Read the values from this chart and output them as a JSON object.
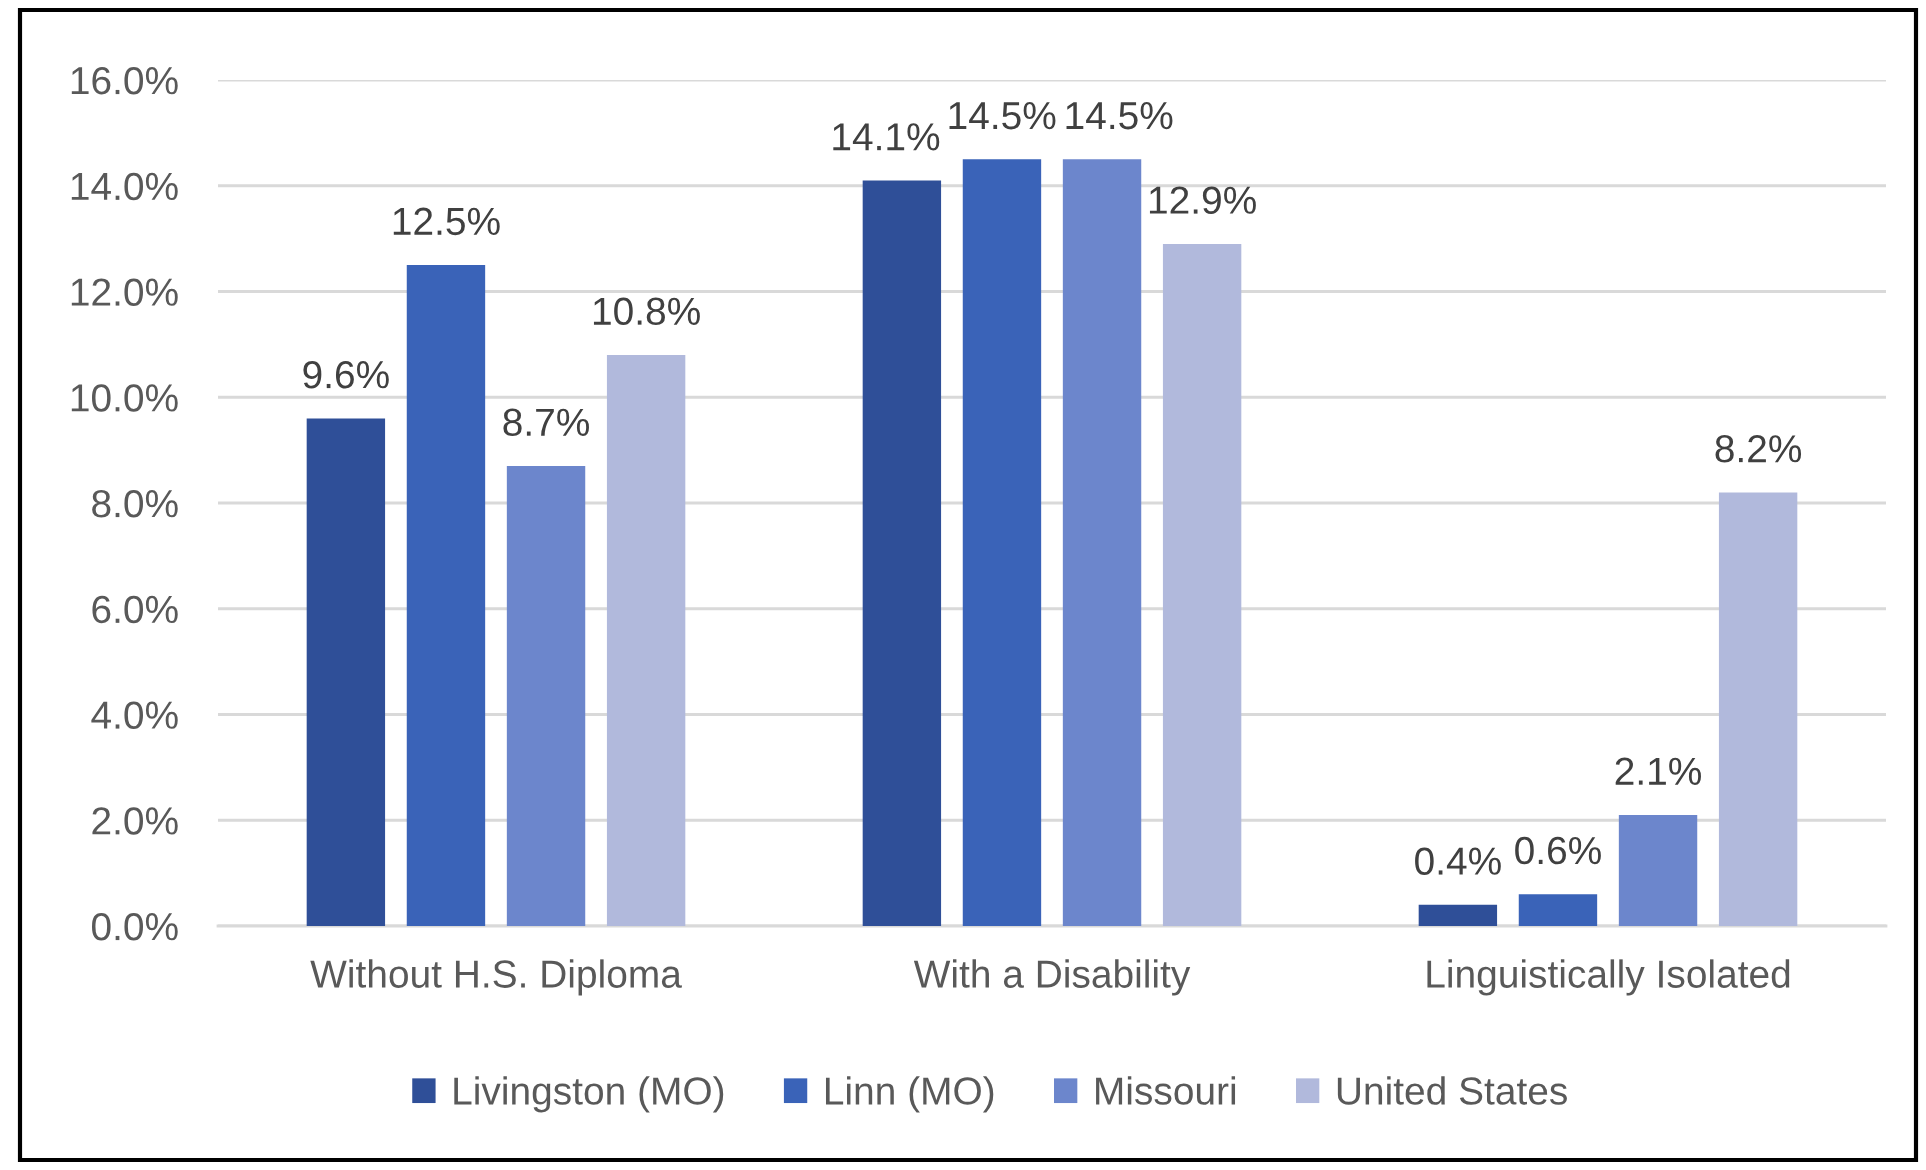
{
  "chart_data": {
    "type": "bar",
    "categories": [
      "Without H.S. Diploma",
      "With a Disability",
      "Linguistically Isolated"
    ],
    "series": [
      {
        "name": "Livingston (MO)",
        "color": "#2f4f98",
        "values": [
          9.6,
          14.1,
          0.4
        ],
        "value_labels": [
          "9.6%",
          "14.1%",
          "0.4%"
        ]
      },
      {
        "name": "Linn (MO)",
        "color": "#3a63b8",
        "values": [
          12.5,
          14.5,
          0.6
        ],
        "value_labels": [
          "12.5%",
          "14.5%",
          "0.6%"
        ]
      },
      {
        "name": "Missouri",
        "color": "#6c86cc",
        "values": [
          8.7,
          14.5,
          2.1
        ],
        "value_labels": [
          "8.7%",
          "14.5%",
          "2.1%"
        ]
      },
      {
        "name": "United States",
        "color": "#b1b9dc",
        "values": [
          10.8,
          12.9,
          8.2
        ],
        "value_labels": [
          "10.8%",
          "12.9%",
          "8.2%"
        ]
      }
    ],
    "ylim": [
      0,
      16
    ],
    "yticks": [
      {
        "value": 0,
        "label": "0.0%"
      },
      {
        "value": 2,
        "label": "2.0%"
      },
      {
        "value": 4,
        "label": "4.0%"
      },
      {
        "value": 6,
        "label": "6.0%"
      },
      {
        "value": 8,
        "label": "8.0%"
      },
      {
        "value": 10,
        "label": "10.0%"
      },
      {
        "value": 12,
        "label": "12.0%"
      },
      {
        "value": 14,
        "label": "14.0%"
      },
      {
        "value": 16,
        "label": "16.0%"
      }
    ],
    "grid": "y",
    "legend": "bottom"
  }
}
